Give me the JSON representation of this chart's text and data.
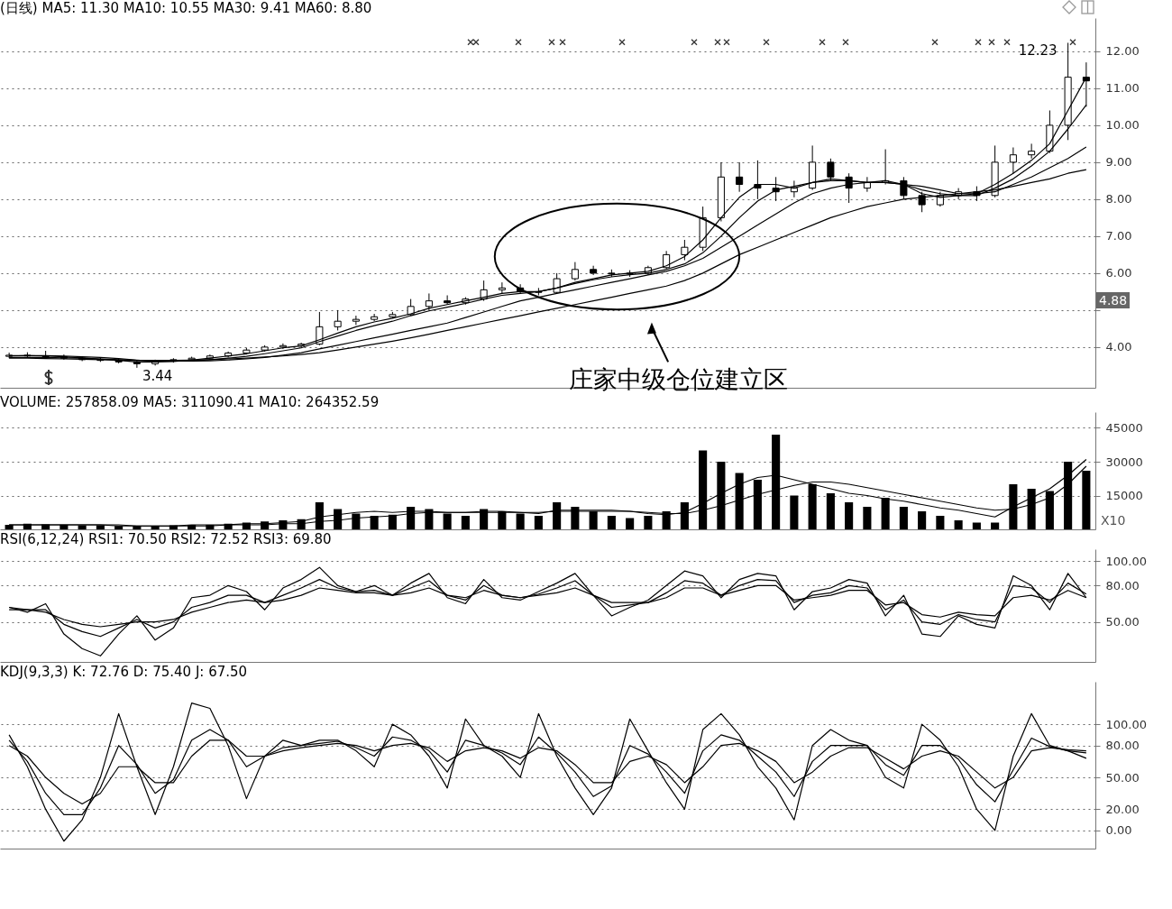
{
  "chart_data": [
    {
      "type": "candlestick",
      "title": "(日线) MA5: 11.30 MA10: 10.55 MA30: 9.41 MA60: 8.80",
      "categories": [
        null,
        null,
        null,
        null,
        null,
        null,
        null,
        null,
        null,
        null,
        null,
        null,
        null,
        null,
        null,
        null,
        null,
        null,
        null,
        null,
        null,
        null,
        null,
        null,
        null,
        null,
        null,
        null,
        null,
        null,
        null,
        null,
        null,
        null,
        null,
        null,
        null,
        null,
        null,
        null,
        null,
        null,
        null,
        null,
        null,
        null,
        null,
        null,
        null,
        null,
        null,
        null,
        null,
        null,
        null,
        null,
        null,
        null,
        null,
        null
      ],
      "ohlc": [
        [
          3.75,
          3.85,
          3.7,
          3.78
        ],
        [
          3.78,
          3.86,
          3.72,
          3.76
        ],
        [
          3.76,
          3.9,
          3.72,
          3.74
        ],
        [
          3.74,
          3.8,
          3.66,
          3.7
        ],
        [
          3.7,
          3.75,
          3.62,
          3.66
        ],
        [
          3.66,
          3.72,
          3.6,
          3.64
        ],
        [
          3.64,
          3.7,
          3.56,
          3.6
        ],
        [
          3.6,
          3.64,
          3.44,
          3.55
        ],
        [
          3.55,
          3.66,
          3.5,
          3.62
        ],
        [
          3.62,
          3.7,
          3.58,
          3.66
        ],
        [
          3.66,
          3.74,
          3.62,
          3.7
        ],
        [
          3.7,
          3.8,
          3.66,
          3.76
        ],
        [
          3.76,
          3.88,
          3.72,
          3.84
        ],
        [
          3.84,
          3.98,
          3.8,
          3.92
        ],
        [
          3.92,
          4.05,
          3.88,
          4.0
        ],
        [
          4.0,
          4.1,
          3.95,
          4.04
        ],
        [
          4.04,
          4.12,
          3.98,
          4.08
        ],
        [
          4.08,
          4.95,
          4.05,
          4.55
        ],
        [
          4.55,
          5.0,
          4.45,
          4.7
        ],
        [
          4.7,
          4.85,
          4.6,
          4.75
        ],
        [
          4.75,
          4.9,
          4.7,
          4.82
        ],
        [
          4.82,
          4.95,
          4.78,
          4.88
        ],
        [
          4.88,
          5.3,
          4.85,
          5.1
        ],
        [
          5.1,
          5.45,
          5.0,
          5.25
        ],
        [
          5.25,
          5.4,
          5.15,
          5.2
        ],
        [
          5.2,
          5.35,
          5.15,
          5.3
        ],
        [
          5.3,
          5.8,
          5.25,
          5.55
        ],
        [
          5.55,
          5.75,
          5.45,
          5.6
        ],
        [
          5.6,
          5.7,
          5.45,
          5.5
        ],
        [
          5.5,
          5.6,
          5.4,
          5.48
        ],
        [
          5.48,
          6.0,
          5.45,
          5.85
        ],
        [
          5.85,
          6.3,
          5.8,
          6.1
        ],
        [
          6.1,
          6.2,
          5.95,
          6.0
        ],
        [
          6.0,
          6.1,
          5.9,
          5.98
        ],
        [
          5.98,
          6.08,
          5.9,
          6.0
        ],
        [
          6.0,
          6.2,
          5.95,
          6.15
        ],
        [
          6.15,
          6.6,
          6.1,
          6.5
        ],
        [
          6.5,
          6.9,
          6.35,
          6.7
        ],
        [
          6.7,
          7.8,
          6.6,
          7.5
        ],
        [
          7.5,
          9.0,
          7.4,
          8.6
        ],
        [
          8.6,
          9.0,
          8.2,
          8.4
        ],
        [
          8.4,
          9.05,
          8.0,
          8.3
        ],
        [
          8.3,
          8.6,
          7.95,
          8.2
        ],
        [
          8.2,
          8.5,
          8.05,
          8.3
        ],
        [
          8.3,
          9.45,
          8.25,
          9.0
        ],
        [
          9.0,
          9.1,
          8.5,
          8.6
        ],
        [
          8.6,
          8.7,
          7.9,
          8.3
        ],
        [
          8.3,
          8.6,
          8.2,
          8.45
        ],
        [
          8.45,
          9.35,
          8.4,
          8.5
        ],
        [
          8.5,
          8.6,
          8.0,
          8.1
        ],
        [
          8.1,
          8.2,
          7.65,
          7.85
        ],
        [
          7.85,
          8.2,
          7.8,
          8.1
        ],
        [
          8.1,
          8.3,
          8.0,
          8.2
        ],
        [
          8.2,
          8.35,
          7.95,
          8.1
        ],
        [
          8.1,
          9.45,
          8.05,
          9.0
        ],
        [
          9.0,
          9.4,
          8.7,
          9.2
        ],
        [
          9.2,
          9.5,
          9.1,
          9.3
        ],
        [
          9.3,
          10.4,
          9.25,
          10.0
        ],
        [
          10.0,
          12.23,
          9.6,
          11.3
        ],
        [
          11.3,
          11.7,
          10.5,
          11.2
        ]
      ],
      "series": [
        {
          "type": "line",
          "color": "#000000",
          "values": [
            3.77,
            3.77,
            3.76,
            3.74,
            3.71,
            3.67,
            3.64,
            3.6,
            3.6,
            3.61,
            3.65,
            3.7,
            3.76,
            3.82,
            3.9,
            3.98,
            4.03,
            4.2,
            4.38,
            4.55,
            4.68,
            4.78,
            4.9,
            5.05,
            5.15,
            5.25,
            5.35,
            5.45,
            5.5,
            5.5,
            5.6,
            5.75,
            5.85,
            5.95,
            6.0,
            6.05,
            6.2,
            6.45,
            6.9,
            7.5,
            8.05,
            8.4,
            8.4,
            8.3,
            8.45,
            8.55,
            8.5,
            8.45,
            8.5,
            8.4,
            8.15,
            8.05,
            8.1,
            8.15,
            8.4,
            8.7,
            9.05,
            9.5,
            10.4,
            11.3
          ]
        },
        {
          "type": "line",
          "color": "#000000",
          "values": [
            3.76,
            3.77,
            3.77,
            3.76,
            3.74,
            3.72,
            3.69,
            3.65,
            3.62,
            3.62,
            3.63,
            3.66,
            3.7,
            3.75,
            3.82,
            3.9,
            3.98,
            4.15,
            4.3,
            4.45,
            4.58,
            4.7,
            4.85,
            4.98,
            5.08,
            5.18,
            5.3,
            5.4,
            5.45,
            5.5,
            5.6,
            5.72,
            5.82,
            5.9,
            5.96,
            6.0,
            6.1,
            6.25,
            6.55,
            7.0,
            7.5,
            7.95,
            8.25,
            8.35,
            8.45,
            8.5,
            8.5,
            8.45,
            8.45,
            8.4,
            8.25,
            8.15,
            8.1,
            8.1,
            8.3,
            8.55,
            8.9,
            9.3,
            9.9,
            10.55
          ]
        },
        {
          "type": "line",
          "color": "#000000",
          "values": [
            3.72,
            3.72,
            3.72,
            3.71,
            3.7,
            3.68,
            3.66,
            3.64,
            3.62,
            3.62,
            3.62,
            3.63,
            3.65,
            3.68,
            3.72,
            3.78,
            3.85,
            3.95,
            4.05,
            4.15,
            4.25,
            4.35,
            4.45,
            4.55,
            4.65,
            4.8,
            4.95,
            5.1,
            5.25,
            5.35,
            5.45,
            5.55,
            5.65,
            5.75,
            5.85,
            5.95,
            6.05,
            6.2,
            6.4,
            6.7,
            7.0,
            7.3,
            7.6,
            7.9,
            8.15,
            8.3,
            8.4,
            8.45,
            8.45,
            8.4,
            8.35,
            8.25,
            8.15,
            8.15,
            8.2,
            8.4,
            8.6,
            8.85,
            9.1,
            9.41
          ]
        },
        {
          "type": "line",
          "color": "#000000",
          "values": [
            3.7,
            3.7,
            3.69,
            3.68,
            3.67,
            3.66,
            3.65,
            3.64,
            3.64,
            3.64,
            3.65,
            3.66,
            3.68,
            3.7,
            3.73,
            3.76,
            3.8,
            3.85,
            3.92,
            4.0,
            4.08,
            4.16,
            4.25,
            4.35,
            4.45,
            4.55,
            4.65,
            4.75,
            4.85,
            4.95,
            5.05,
            5.15,
            5.25,
            5.35,
            5.45,
            5.55,
            5.65,
            5.8,
            6.0,
            6.25,
            6.5,
            6.7,
            6.9,
            7.1,
            7.3,
            7.5,
            7.65,
            7.8,
            7.9,
            8.0,
            8.05,
            8.1,
            8.15,
            8.2,
            8.25,
            8.35,
            8.45,
            8.55,
            8.7,
            8.8
          ]
        }
      ],
      "ylim": [
        2.9,
        12.9
      ],
      "yticks": [
        {
          "value": 4,
          "label": "4.00"
        },
        {
          "value": 5,
          "label": null
        },
        {
          "value": 6,
          "label": "6.00"
        },
        {
          "value": 7,
          "label": "7.00"
        },
        {
          "value": 8,
          "label": "8.00"
        },
        {
          "value": 9,
          "label": "9.00"
        },
        {
          "value": 10,
          "label": "10.00"
        },
        {
          "value": 11,
          "label": "11.00"
        },
        {
          "value": 12,
          "label": "12.00"
        }
      ],
      "grid": "y",
      "annotations": [
        "12.23",
        "3.44",
        "庄家中级仓位建立区",
        "4.88"
      ]
    },
    {
      "type": "bar",
      "title": "VOLUME: 257858.09 MA5: 311090.41 MA10: 264352.59",
      "categories": [
        null,
        null,
        null,
        null,
        null,
        null,
        null,
        null,
        null,
        null,
        null,
        null,
        null,
        null,
        null,
        null,
        null,
        null,
        null,
        null,
        null,
        null,
        null,
        null,
        null,
        null,
        null,
        null,
        null,
        null,
        null,
        null,
        null,
        null,
        null,
        null,
        null,
        null,
        null,
        null,
        null,
        null,
        null,
        null,
        null,
        null,
        null,
        null,
        null,
        null,
        null,
        null,
        null,
        null,
        null,
        null,
        null,
        null,
        null,
        null
      ],
      "series": [
        {
          "type": "bar",
          "color": "#000000",
          "values": [
            2000,
            2500,
            2200,
            2000,
            1800,
            1800,
            1500,
            1500,
            1600,
            1800,
            2000,
            2000,
            2500,
            3000,
            3500,
            4000,
            4500,
            12000,
            9000,
            7000,
            6000,
            6500,
            10000,
            9000,
            7000,
            6000,
            9000,
            8000,
            7000,
            6000,
            12000,
            10000,
            8000,
            6000,
            5000,
            6000,
            8000,
            12000,
            35000,
            30000,
            25000,
            22000,
            42000,
            15000,
            20000,
            16000,
            12000,
            10000,
            14000,
            10000,
            8000,
            6000,
            4000,
            3000,
            3000,
            20000,
            18000,
            17000,
            30000,
            26000
          ]
        },
        {
          "type": "line",
          "color": "#000000",
          "values": [
            2000,
            2000,
            2000,
            2000,
            2000,
            2000,
            1500,
            1500,
            1500,
            1500,
            2000,
            2000,
            2000,
            2500,
            2500,
            3000,
            3500,
            5500,
            6500,
            7500,
            8000,
            7500,
            8000,
            8000,
            7500,
            7500,
            8000,
            8000,
            7500,
            7000,
            8500,
            8500,
            8500,
            8500,
            8000,
            7000,
            6500,
            7500,
            11500,
            16000,
            20000,
            23000,
            24000,
            22000,
            20000,
            18000,
            16000,
            15000,
            13500,
            12500,
            11000,
            9500,
            8500,
            7000,
            5500,
            10000,
            14000,
            18000,
            24000,
            31000
          ]
        },
        {
          "type": "line",
          "color": "#000000",
          "values": [
            2000,
            2000,
            2000,
            2000,
            2000,
            2000,
            2000,
            1500,
            1500,
            1500,
            1500,
            1500,
            2000,
            2000,
            2000,
            2500,
            2500,
            3500,
            4000,
            5000,
            5500,
            6000,
            7000,
            7500,
            7500,
            7500,
            7500,
            7500,
            7500,
            7500,
            8000,
            8000,
            8000,
            8000,
            8000,
            7500,
            7000,
            7000,
            8500,
            10500,
            13000,
            15500,
            17500,
            19500,
            21000,
            21000,
            20000,
            18500,
            17000,
            15500,
            14000,
            12500,
            11000,
            9500,
            8500,
            9000,
            11000,
            14000,
            20000,
            28000
          ]
        }
      ],
      "ylim": [
        0,
        52000
      ],
      "yticks": [
        15000,
        30000,
        45000
      ],
      "grid": "y",
      "annotations": [
        "X10"
      ]
    },
    {
      "type": "line",
      "title": "RSI(6,12,24) RSI1: 70.50 RSI2: 72.52 RSI3: 69.80",
      "categories": [
        null,
        null,
        null,
        null,
        null,
        null,
        null,
        null,
        null,
        null,
        null,
        null,
        null,
        null,
        null,
        null,
        null,
        null,
        null,
        null,
        null,
        null,
        null,
        null,
        null,
        null,
        null,
        null,
        null,
        null,
        null,
        null,
        null,
        null,
        null,
        null,
        null,
        null,
        null,
        null,
        null,
        null,
        null,
        null,
        null,
        null,
        null,
        null,
        null,
        null,
        null,
        null,
        null,
        null,
        null,
        null,
        null,
        null,
        null,
        null
      ],
      "series": [
        {
          "color": "#000000",
          "values": [
            62,
            58,
            65,
            40,
            28,
            22,
            40,
            55,
            35,
            45,
            70,
            72,
            80,
            75,
            60,
            78,
            85,
            95,
            80,
            75,
            80,
            72,
            82,
            90,
            70,
            65,
            85,
            70,
            68,
            75,
            82,
            90,
            72,
            55,
            62,
            68,
            80,
            92,
            88,
            70,
            85,
            90,
            88,
            60,
            75,
            78,
            85,
            82,
            55,
            72,
            40,
            38,
            55,
            48,
            45,
            88,
            80,
            60,
            90,
            70
          ]
        },
        {
          "color": "#000000",
          "values": [
            62,
            60,
            60,
            48,
            42,
            38,
            45,
            52,
            45,
            50,
            62,
            66,
            72,
            72,
            66,
            72,
            78,
            85,
            78,
            75,
            76,
            72,
            78,
            84,
            72,
            68,
            80,
            72,
            70,
            73,
            78,
            84,
            72,
            62,
            64,
            66,
            74,
            84,
            82,
            72,
            80,
            85,
            84,
            66,
            72,
            74,
            80,
            78,
            60,
            68,
            50,
            48,
            56,
            52,
            50,
            80,
            78,
            66,
            82,
            73
          ]
        },
        {
          "color": "#000000",
          "values": [
            60,
            60,
            58,
            52,
            48,
            46,
            48,
            50,
            50,
            52,
            58,
            62,
            66,
            68,
            66,
            68,
            72,
            78,
            76,
            74,
            74,
            72,
            74,
            78,
            72,
            70,
            76,
            72,
            70,
            72,
            74,
            78,
            72,
            66,
            66,
            66,
            70,
            78,
            78,
            72,
            76,
            80,
            80,
            68,
            70,
            72,
            76,
            76,
            64,
            66,
            56,
            54,
            58,
            56,
            55,
            70,
            72,
            68,
            76,
            70
          ]
        }
      ],
      "ylim": [
        17,
        110
      ],
      "yticks": [
        {
          "value": 50,
          "label": "50.00"
        },
        {
          "value": 80,
          "label": "80.00"
        },
        {
          "value": 100,
          "label": "100.00"
        }
      ],
      "grid": "y"
    },
    {
      "type": "line",
      "title": "KDJ(9,3,3) K: 72.76 D: 75.40 J: 67.50",
      "categories": [
        null,
        null,
        null,
        null,
        null,
        null,
        null,
        null,
        null,
        null,
        null,
        null,
        null,
        null,
        null,
        null,
        null,
        null,
        null,
        null,
        null,
        null,
        null,
        null,
        null,
        null,
        null,
        null,
        null,
        null,
        null,
        null,
        null,
        null,
        null,
        null,
        null,
        null,
        null,
        null,
        null,
        null,
        null,
        null,
        null,
        null,
        null,
        null,
        null,
        null,
        null,
        null,
        null,
        null,
        null,
        null,
        null,
        null,
        null,
        null
      ],
      "series": [
        {
          "color": "#000000",
          "values": [
            85,
            65,
            35,
            15,
            15,
            40,
            80,
            62,
            35,
            48,
            85,
            95,
            85,
            60,
            70,
            78,
            80,
            82,
            84,
            78,
            70,
            88,
            85,
            75,
            55,
            85,
            80,
            73,
            62,
            88,
            73,
            55,
            32,
            42,
            80,
            72,
            55,
            35,
            75,
            90,
            85,
            70,
            55,
            32,
            65,
            80,
            80,
            80,
            62,
            52,
            80,
            80,
            67,
            43,
            27,
            57,
            87,
            79,
            75,
            73
          ]
        },
        {
          "color": "#000000",
          "values": [
            80,
            70,
            50,
            35,
            25,
            35,
            60,
            60,
            45,
            45,
            70,
            85,
            85,
            70,
            70,
            75,
            78,
            80,
            82,
            80,
            75,
            80,
            82,
            78,
            65,
            75,
            78,
            75,
            68,
            78,
            75,
            62,
            45,
            45,
            65,
            70,
            62,
            45,
            60,
            80,
            82,
            75,
            65,
            45,
            55,
            70,
            78,
            78,
            68,
            58,
            70,
            75,
            70,
            55,
            40,
            50,
            75,
            78,
            76,
            75
          ]
        },
        {
          "color": "#000000",
          "values": [
            90,
            60,
            20,
            -10,
            10,
            50,
            110,
            60,
            15,
            60,
            120,
            115,
            80,
            30,
            70,
            85,
            80,
            85,
            85,
            75,
            60,
            100,
            90,
            70,
            40,
            105,
            80,
            70,
            50,
            110,
            70,
            40,
            15,
            40,
            105,
            75,
            45,
            20,
            95,
            110,
            90,
            60,
            40,
            10,
            80,
            95,
            85,
            80,
            50,
            40,
            100,
            85,
            60,
            20,
            0,
            70,
            110,
            80,
            75,
            68
          ]
        }
      ],
      "ylim": [
        -17,
        140
      ],
      "yticks": [
        {
          "value": 0,
          "label": "0.00"
        },
        {
          "value": 20,
          "label": "20.00"
        },
        {
          "value": 50,
          "label": "50.00"
        },
        {
          "value": 80,
          "label": "80.00"
        },
        {
          "value": 100,
          "label": "100.00"
        }
      ],
      "grid": "y"
    }
  ]
}
